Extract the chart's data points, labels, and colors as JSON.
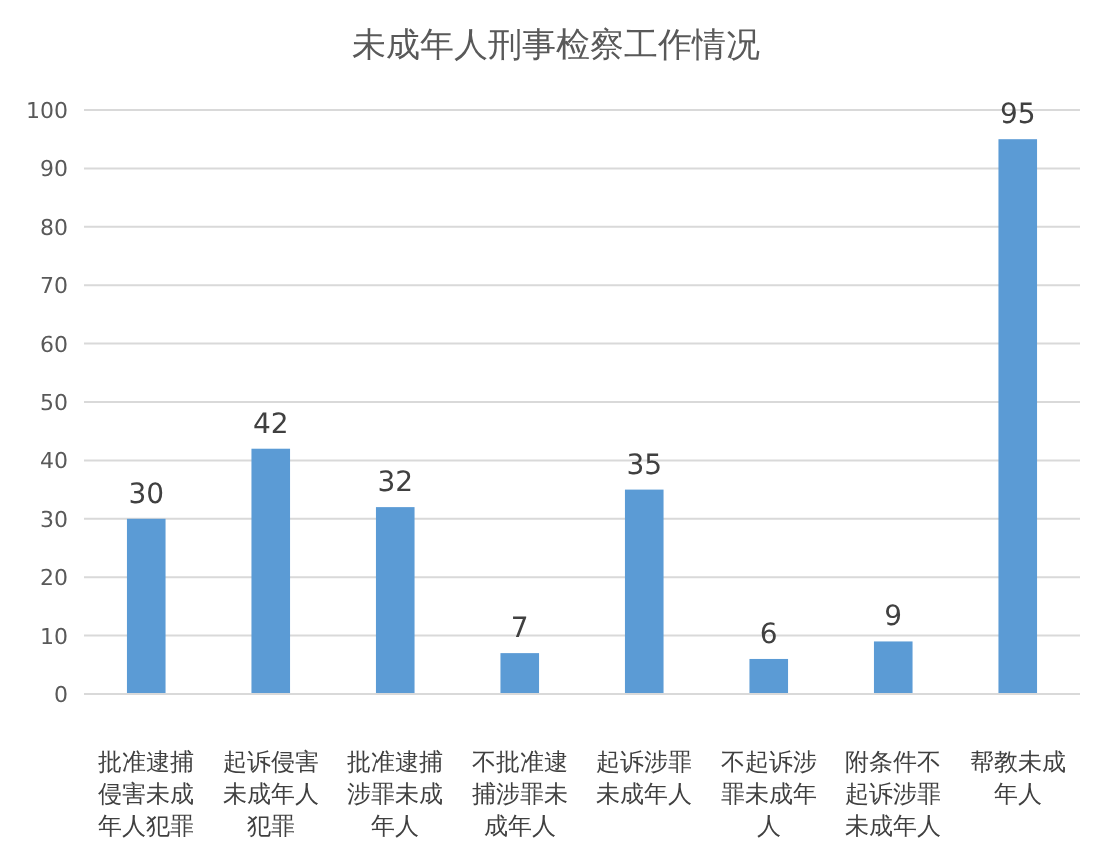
{
  "chart_data": {
    "type": "bar",
    "title": "未成年人刑事检察工作情况",
    "categories": [
      "批准逮捕侵害未成年人犯罪",
      "起诉侵害未成年人犯罪",
      "批准逮捕涉罪未成年人",
      "不批准逮捕涉罪未成年人",
      "起诉涉罪未成年人",
      "不起诉涉罪未成年人",
      "附条件不起诉涉罪未成年人",
      "帮教未成年人"
    ],
    "values": [
      30,
      42,
      32,
      7,
      35,
      6,
      9,
      95
    ],
    "color": "#5b9bd5",
    "ylim": [
      0,
      100
    ],
    "yticks": [
      0,
      10,
      20,
      30,
      40,
      50,
      60,
      70,
      80,
      90,
      100
    ],
    "grid": "y",
    "data_labels": true
  }
}
